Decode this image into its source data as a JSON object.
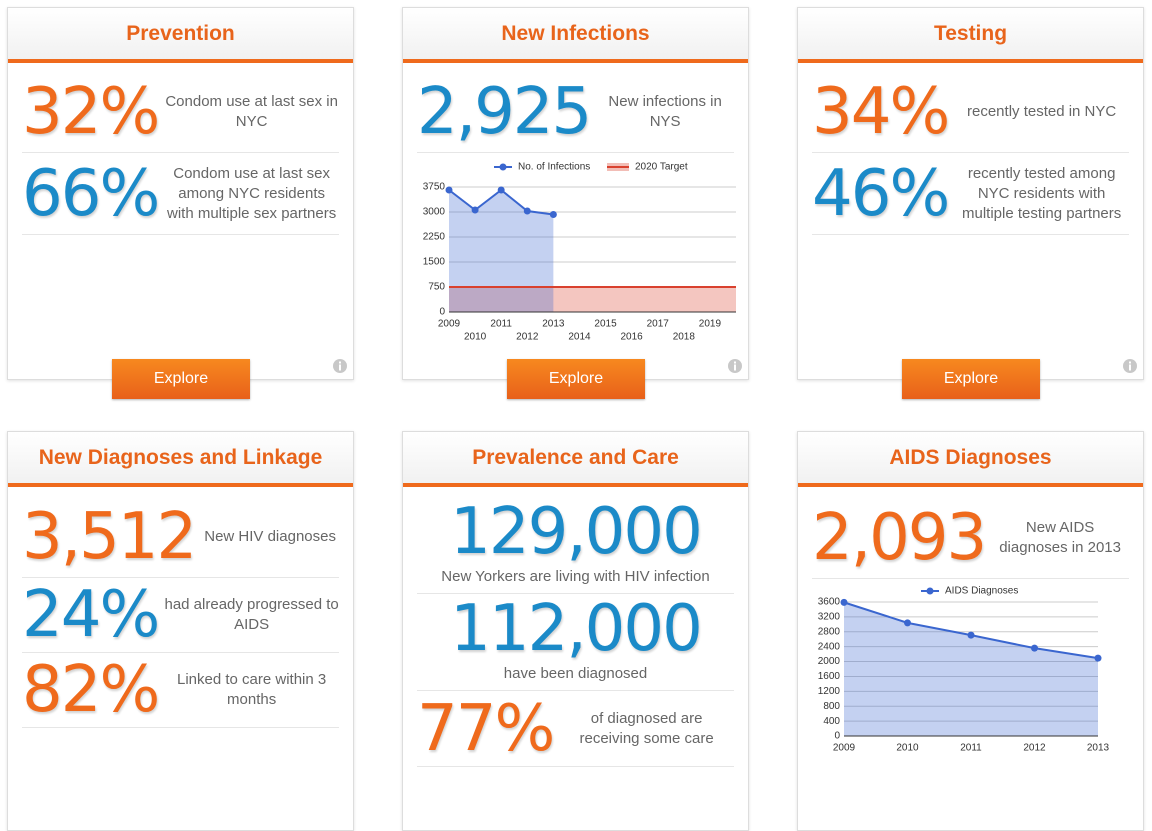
{
  "cards": [
    {
      "title": "Prevention",
      "button": "Explore",
      "stats": [
        {
          "value": "32%",
          "text": "Condom use at last sex in NYC",
          "color": "#ef6a1c"
        },
        {
          "value": "66%",
          "text": "Condom use at last sex among NYC residents with multiple sex partners",
          "color": "#1b8ac8"
        }
      ]
    },
    {
      "title": "New Infections",
      "button": "Explore",
      "stats": [
        {
          "value": "2,925",
          "text": "New infections in NYS",
          "color": "#1b8ac8"
        }
      ],
      "chart": {
        "type": "area",
        "x": [
          2009,
          2010,
          2011,
          2012,
          2013
        ],
        "series": [
          {
            "name": "No. of Infections",
            "color": "#3a66cf",
            "values": [
              3660,
              3060,
              3660,
              3030,
              2925
            ]
          }
        ],
        "target": {
          "name": "2020 Target",
          "value": 750,
          "color": "#d9412e"
        },
        "xlim": [
          2009,
          2020
        ],
        "xticks": [
          2009,
          2010,
          2011,
          2012,
          2013,
          2014,
          2015,
          2016,
          2017,
          2018,
          2019
        ],
        "ylim": [
          0,
          3750
        ],
        "yticks": [
          0,
          750,
          1500,
          2250,
          3000,
          3750
        ],
        "grid": true
      }
    },
    {
      "title": "Testing",
      "button": "Explore",
      "stats": [
        {
          "value": "34%",
          "text": "recently tested in NYC",
          "color": "#ef6a1c"
        },
        {
          "value": "46%",
          "text": "recently tested among NYC residents with multiple testing partners",
          "color": "#1b8ac8"
        }
      ]
    },
    {
      "title": "New Diagnoses and Linkage",
      "stats": [
        {
          "value": "3,512",
          "text": "New HIV diagnoses",
          "color": "#ef6a1c"
        },
        {
          "value": "24%",
          "text": "had already progressed to AIDS",
          "color": "#1b8ac8"
        },
        {
          "value": "82%",
          "text": "Linked to care within 3 months",
          "color": "#ef6a1c"
        }
      ]
    },
    {
      "title": "Prevalence and Care",
      "stats": [
        {
          "value": "129,000",
          "text": "New Yorkers are living with HIV infection",
          "color": "#1b8ac8"
        },
        {
          "value": "112,000",
          "text": "have been diagnosed",
          "color": "#1b8ac8"
        },
        {
          "value": "77%",
          "text": "of diagnosed are receiving some care",
          "color": "#ef6a1c"
        }
      ]
    },
    {
      "title": "AIDS Diagnoses",
      "stats": [
        {
          "value": "2,093",
          "text": "New AIDS diagnoses in 2013",
          "color": "#ef6a1c"
        }
      ],
      "chart": {
        "type": "area",
        "x": [
          2009,
          2010,
          2011,
          2012,
          2013
        ],
        "series": [
          {
            "name": "AIDS Diagnoses",
            "color": "#3a66cf",
            "values": [
              3590,
              3040,
              2710,
              2360,
              2093
            ]
          }
        ],
        "xlim": [
          2009,
          2013
        ],
        "xticks": [
          2009,
          2010,
          2011,
          2012,
          2013
        ],
        "ylim": [
          0,
          3600
        ],
        "yticks": [
          0,
          400,
          800,
          1200,
          1600,
          2000,
          2400,
          2800,
          3200,
          3600
        ],
        "grid": true
      }
    }
  ]
}
